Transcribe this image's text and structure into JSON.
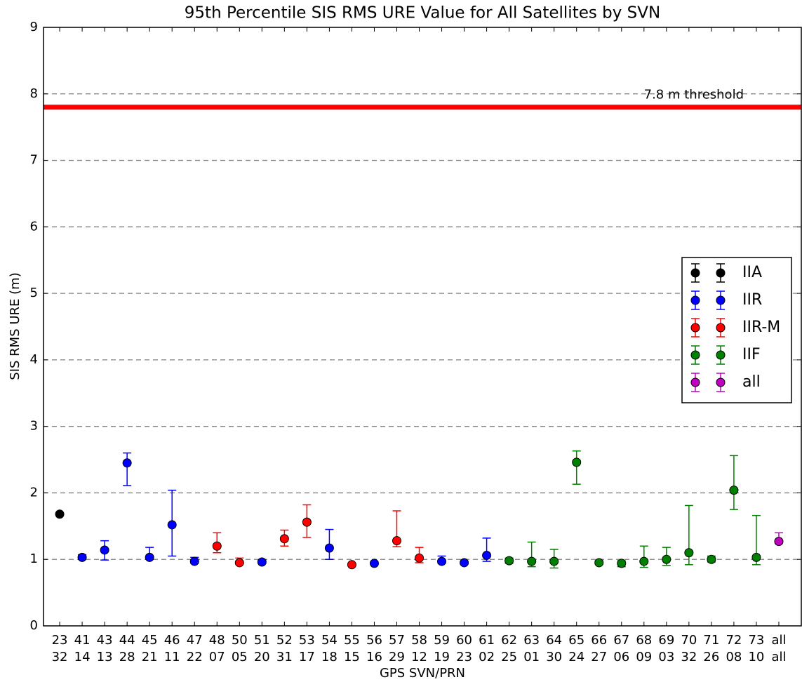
{
  "chart_data": {
    "type": "errorbar",
    "title": "95th Percentile SIS RMS URE Value for All Satellites by SVN",
    "xlabel": "GPS SVN/PRN",
    "ylabel": "SIS RMS URE (m)",
    "categories": [
      "23",
      "41",
      "43",
      "44",
      "45",
      "46",
      "47",
      "48",
      "50",
      "51",
      "52",
      "53",
      "54",
      "55",
      "56",
      "57",
      "58",
      "59",
      "60",
      "61",
      "62",
      "63",
      "64",
      "65",
      "66",
      "67",
      "68",
      "69",
      "70",
      "71",
      "72",
      "73",
      "all"
    ],
    "category_sublabels": [
      "32",
      "14",
      "13",
      "28",
      "21",
      "11",
      "22",
      "07",
      "05",
      "20",
      "31",
      "17",
      "18",
      "15",
      "16",
      "29",
      "12",
      "19",
      "23",
      "02",
      "25",
      "01",
      "30",
      "24",
      "27",
      "06",
      "09",
      "03",
      "32",
      "26",
      "08",
      "10",
      "all"
    ],
    "ylim": [
      0,
      9
    ],
    "yticks": [
      0,
      1,
      2,
      3,
      4,
      5,
      6,
      7,
      8,
      9
    ],
    "grid": true,
    "legend": "center right",
    "reference_line": {
      "value": 7.8,
      "label": "7.8 m threshold",
      "color": "#ff0000"
    },
    "series": [
      {
        "name": "IIA",
        "color": "#000000",
        "values": [
          1.68,
          null,
          null,
          null,
          null,
          null,
          null,
          null,
          null,
          null,
          null,
          null,
          null,
          null,
          null,
          null,
          null,
          null,
          null,
          null,
          null,
          null,
          null,
          null,
          null,
          null,
          null,
          null,
          null,
          null,
          null,
          null,
          null
        ],
        "lower": [
          1.67,
          null,
          null,
          null,
          null,
          null,
          null,
          null,
          null,
          null,
          null,
          null,
          null,
          null,
          null,
          null,
          null,
          null,
          null,
          null,
          null,
          null,
          null,
          null,
          null,
          null,
          null,
          null,
          null,
          null,
          null,
          null,
          null
        ],
        "upper": [
          1.69,
          null,
          null,
          null,
          null,
          null,
          null,
          null,
          null,
          null,
          null,
          null,
          null,
          null,
          null,
          null,
          null,
          null,
          null,
          null,
          null,
          null,
          null,
          null,
          null,
          null,
          null,
          null,
          null,
          null,
          null,
          null,
          null
        ]
      },
      {
        "name": "IIR",
        "color": "#0000ff",
        "values": [
          null,
          1.03,
          1.14,
          2.45,
          1.03,
          1.52,
          0.97,
          null,
          null,
          0.96,
          null,
          null,
          1.17,
          null,
          0.94,
          null,
          null,
          0.97,
          0.95,
          1.06,
          null,
          null,
          null,
          null,
          null,
          null,
          null,
          null,
          null,
          null,
          null,
          null,
          null
        ],
        "lower": [
          null,
          1.0,
          0.99,
          2.11,
          1.0,
          1.05,
          0.94,
          null,
          null,
          0.94,
          null,
          null,
          1.0,
          null,
          0.92,
          null,
          null,
          0.94,
          0.93,
          0.97,
          null,
          null,
          null,
          null,
          null,
          null,
          null,
          null,
          null,
          null,
          null,
          null,
          null
        ],
        "upper": [
          null,
          1.07,
          1.28,
          2.6,
          1.18,
          2.04,
          1.03,
          null,
          null,
          0.99,
          null,
          null,
          1.45,
          null,
          0.96,
          null,
          null,
          1.05,
          0.97,
          1.32,
          null,
          null,
          null,
          null,
          null,
          null,
          null,
          null,
          null,
          null,
          null,
          null,
          null
        ]
      },
      {
        "name": "IIR-M",
        "color": "#ff0000",
        "values": [
          null,
          null,
          null,
          null,
          null,
          null,
          null,
          1.2,
          0.95,
          null,
          1.31,
          1.56,
          null,
          0.92,
          null,
          1.28,
          1.02,
          null,
          null,
          null,
          null,
          null,
          null,
          null,
          null,
          null,
          null,
          null,
          null,
          null,
          null,
          null,
          null
        ],
        "lower": [
          null,
          null,
          null,
          null,
          null,
          null,
          null,
          1.1,
          0.93,
          null,
          1.2,
          1.33,
          null,
          0.9,
          null,
          1.19,
          0.95,
          null,
          null,
          null,
          null,
          null,
          null,
          null,
          null,
          null,
          null,
          null,
          null,
          null,
          null,
          null,
          null
        ],
        "upper": [
          null,
          null,
          null,
          null,
          null,
          null,
          null,
          1.4,
          1.02,
          null,
          1.44,
          1.82,
          null,
          0.94,
          null,
          1.73,
          1.18,
          null,
          null,
          null,
          null,
          null,
          null,
          null,
          null,
          null,
          null,
          null,
          null,
          null,
          null,
          null,
          null
        ]
      },
      {
        "name": "IIF",
        "color": "#008000",
        "values": [
          null,
          null,
          null,
          null,
          null,
          null,
          null,
          null,
          null,
          null,
          null,
          null,
          null,
          null,
          null,
          null,
          null,
          null,
          null,
          null,
          0.98,
          0.97,
          0.97,
          2.46,
          0.95,
          0.94,
          0.97,
          1.0,
          1.1,
          1.0,
          2.04,
          1.03,
          null
        ],
        "lower": [
          null,
          null,
          null,
          null,
          null,
          null,
          null,
          null,
          null,
          null,
          null,
          null,
          null,
          null,
          null,
          null,
          null,
          null,
          null,
          null,
          0.94,
          0.89,
          0.87,
          2.13,
          0.93,
          0.89,
          0.88,
          0.91,
          0.92,
          0.96,
          1.75,
          0.92,
          null
        ],
        "upper": [
          null,
          null,
          null,
          null,
          null,
          null,
          null,
          null,
          null,
          null,
          null,
          null,
          null,
          null,
          null,
          null,
          null,
          null,
          null,
          null,
          1.02,
          1.26,
          1.15,
          2.63,
          0.98,
          0.98,
          1.2,
          1.18,
          1.81,
          1.05,
          2.56,
          1.66,
          null
        ]
      },
      {
        "name": "all",
        "color": "#bf00bf",
        "values": [
          null,
          null,
          null,
          null,
          null,
          null,
          null,
          null,
          null,
          null,
          null,
          null,
          null,
          null,
          null,
          null,
          null,
          null,
          null,
          null,
          null,
          null,
          null,
          null,
          null,
          null,
          null,
          null,
          null,
          null,
          null,
          null,
          1.27
        ],
        "lower": [
          null,
          null,
          null,
          null,
          null,
          null,
          null,
          null,
          null,
          null,
          null,
          null,
          null,
          null,
          null,
          null,
          null,
          null,
          null,
          null,
          null,
          null,
          null,
          null,
          null,
          null,
          null,
          null,
          null,
          null,
          null,
          null,
          1.24
        ],
        "upper": [
          null,
          null,
          null,
          null,
          null,
          null,
          null,
          null,
          null,
          null,
          null,
          null,
          null,
          null,
          null,
          null,
          null,
          null,
          null,
          null,
          null,
          null,
          null,
          null,
          null,
          null,
          null,
          null,
          null,
          null,
          null,
          null,
          1.4
        ]
      }
    ]
  }
}
